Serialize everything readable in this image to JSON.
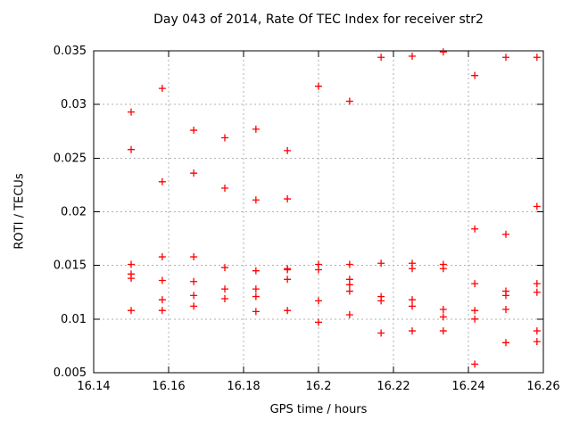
{
  "chart_data": {
    "type": "scatter",
    "title": "Day 043 of 2014, Rate Of TEC Index for receiver str2",
    "xlabel": "GPS time / hours",
    "ylabel": "ROTI / TECUs",
    "xlim": [
      16.14,
      16.26
    ],
    "ylim": [
      0.005,
      0.035
    ],
    "xtick_labels": [
      "16.14",
      "16.16",
      "16.18",
      "16.2",
      "16.22",
      "16.24",
      "16.26"
    ],
    "ytick_labels": [
      "0.005",
      "0.01",
      "0.015",
      "0.02",
      "0.025",
      "0.03",
      "0.035"
    ],
    "grid": true,
    "legend_position": "none",
    "marker": "plus",
    "colors": {
      "marker": "#ff0000",
      "grid": "#b0b0b0",
      "axis": "#000000",
      "background": "#ffffff",
      "text": "#000000"
    },
    "series": [
      {
        "name": "ROTI",
        "points": [
          [
            16.15,
            0.0293
          ],
          [
            16.15,
            0.0258
          ],
          [
            16.15,
            0.0151
          ],
          [
            16.15,
            0.0142
          ],
          [
            16.15,
            0.0138
          ],
          [
            16.15,
            0.0108
          ],
          [
            16.1583,
            0.0315
          ],
          [
            16.1583,
            0.0228
          ],
          [
            16.1583,
            0.0158
          ],
          [
            16.1583,
            0.0136
          ],
          [
            16.1583,
            0.0118
          ],
          [
            16.1583,
            0.0108
          ],
          [
            16.1667,
            0.0276
          ],
          [
            16.1667,
            0.0236
          ],
          [
            16.1667,
            0.0158
          ],
          [
            16.1667,
            0.0135
          ],
          [
            16.1667,
            0.0122
          ],
          [
            16.1667,
            0.0112
          ],
          [
            16.175,
            0.0269
          ],
          [
            16.175,
            0.0222
          ],
          [
            16.175,
            0.0148
          ],
          [
            16.175,
            0.0128
          ],
          [
            16.175,
            0.0119
          ],
          [
            16.1833,
            0.0277
          ],
          [
            16.1833,
            0.0211
          ],
          [
            16.1833,
            0.0145
          ],
          [
            16.1833,
            0.0128
          ],
          [
            16.1833,
            0.0121
          ],
          [
            16.1833,
            0.0107
          ],
          [
            16.1917,
            0.0257
          ],
          [
            16.1917,
            0.0212
          ],
          [
            16.1917,
            0.0147
          ],
          [
            16.1917,
            0.0146
          ],
          [
            16.1917,
            0.0137
          ],
          [
            16.1917,
            0.0108
          ],
          [
            16.2,
            0.0317
          ],
          [
            16.2,
            0.0151
          ],
          [
            16.2,
            0.0146
          ],
          [
            16.2,
            0.0117
          ],
          [
            16.2,
            0.0097
          ],
          [
            16.2083,
            0.0303
          ],
          [
            16.2083,
            0.0151
          ],
          [
            16.2083,
            0.0137
          ],
          [
            16.2083,
            0.0132
          ],
          [
            16.2083,
            0.0126
          ],
          [
            16.2083,
            0.0104
          ],
          [
            16.2167,
            0.0344
          ],
          [
            16.2167,
            0.0152
          ],
          [
            16.2167,
            0.0121
          ],
          [
            16.2167,
            0.0117
          ],
          [
            16.2167,
            0.0087
          ],
          [
            16.225,
            0.0345
          ],
          [
            16.225,
            0.0152
          ],
          [
            16.225,
            0.0147
          ],
          [
            16.225,
            0.0118
          ],
          [
            16.225,
            0.0112
          ],
          [
            16.225,
            0.0089
          ],
          [
            16.2333,
            0.0349
          ],
          [
            16.2333,
            0.0151
          ],
          [
            16.2333,
            0.0147
          ],
          [
            16.2333,
            0.0109
          ],
          [
            16.2333,
            0.0102
          ],
          [
            16.2333,
            0.0089
          ],
          [
            16.2417,
            0.0327
          ],
          [
            16.2417,
            0.0184
          ],
          [
            16.2417,
            0.0133
          ],
          [
            16.2417,
            0.0108
          ],
          [
            16.2417,
            0.01
          ],
          [
            16.2417,
            0.0058
          ],
          [
            16.25,
            0.0344
          ],
          [
            16.25,
            0.0179
          ],
          [
            16.25,
            0.0126
          ],
          [
            16.25,
            0.0122
          ],
          [
            16.25,
            0.0109
          ],
          [
            16.25,
            0.0078
          ],
          [
            16.2583,
            0.0344
          ],
          [
            16.2583,
            0.0205
          ],
          [
            16.2583,
            0.0133
          ],
          [
            16.2583,
            0.0125
          ],
          [
            16.2583,
            0.0089
          ],
          [
            16.2583,
            0.0079
          ]
        ]
      }
    ]
  }
}
